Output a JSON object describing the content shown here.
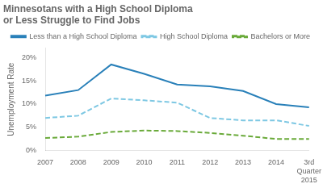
{
  "chart_data": {
    "type": "line",
    "title": "Minnesotans with a High School Diploma\nor Less Struggle to Find Jobs",
    "y_label": "Unemployment Rate",
    "categories": [
      "2007",
      "2008",
      "2009",
      "2010",
      "2011",
      "2012",
      "2013",
      "2014",
      "3rd\nQuarter\n2015"
    ],
    "series": [
      {
        "name": "Less than a High School Diploma",
        "color": "#2980b9",
        "line_style": "solid",
        "values": [
          11.8,
          13.0,
          18.5,
          16.5,
          14.2,
          13.8,
          12.8,
          10.0,
          9.3
        ]
      },
      {
        "name": "High School Diploma",
        "color": "#7ec8e3",
        "line_style": "dashed",
        "values": [
          7.0,
          7.5,
          11.2,
          10.8,
          10.3,
          7.0,
          6.5,
          6.5,
          5.3
        ]
      },
      {
        "name": "Bachelors or More",
        "color": "#6aaa3a",
        "line_style": "dashed",
        "values": [
          2.7,
          3.0,
          4.0,
          4.3,
          4.2,
          3.8,
          3.2,
          2.5,
          2.5
        ]
      }
    ],
    "ylim": [
      0,
      22
    ],
    "yticks": [
      {
        "value": 0,
        "label": "0%"
      },
      {
        "value": 5,
        "label": "5%"
      },
      {
        "value": 10,
        "label": "10%"
      },
      {
        "value": 15,
        "label": "15%"
      },
      {
        "value": 20,
        "label": "20%"
      }
    ],
    "grid": false,
    "legend": "upper right"
  }
}
